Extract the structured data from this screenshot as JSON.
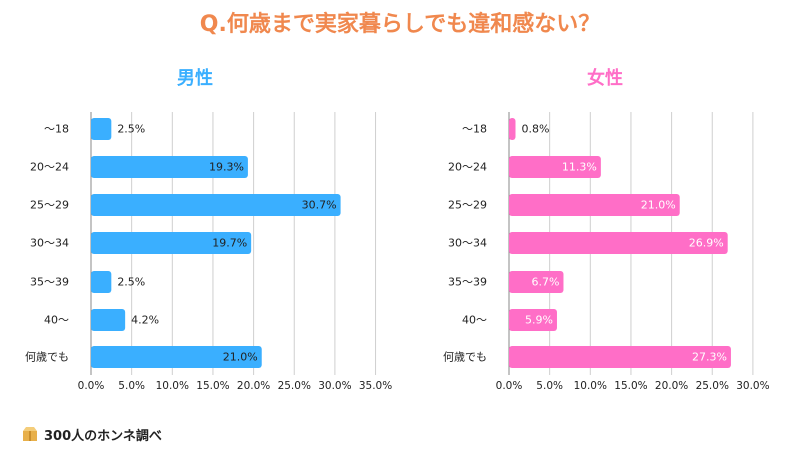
{
  "title": "Q.何歳まで実家暮らしでも違和感ない？",
  "colors": {
    "title": "#f0884e",
    "male": "#3aafff",
    "female": "#ff6ec7",
    "grid": "#cfcfcf",
    "axis": "#888888",
    "text": "#222222"
  },
  "footer": {
    "text": "300人のホンネ調べ",
    "logo_icon": "cardboard-box-icon"
  },
  "chart_data": [
    {
      "type": "bar",
      "orientation": "horizontal",
      "title": "男性",
      "color": "#3aafff",
      "categories": [
        "〜18",
        "20〜24",
        "25〜29",
        "30〜34",
        "35〜39",
        "40〜",
        "何歳でも"
      ],
      "values": [
        2.5,
        19.3,
        30.7,
        19.7,
        2.5,
        4.2,
        21.0
      ],
      "value_labels": [
        "2.5%",
        "19.3%",
        "30.7%",
        "19.7%",
        "2.5%",
        "4.2%",
        "21.0%"
      ],
      "xlim": [
        0,
        35
      ],
      "xticks": [
        "0.0%",
        "5.0%",
        "10.0%",
        "15.0%",
        "20.0%",
        "25.0%",
        "30.0%",
        "35.0%"
      ],
      "grid": true
    },
    {
      "type": "bar",
      "orientation": "horizontal",
      "title": "女性",
      "color": "#ff6ec7",
      "categories": [
        "〜18",
        "20〜24",
        "25〜29",
        "30〜34",
        "35〜39",
        "40〜",
        "何歳でも"
      ],
      "values": [
        0.8,
        11.3,
        21.0,
        26.9,
        6.7,
        5.9,
        27.3
      ],
      "value_labels": [
        "0.8%",
        "11.3%",
        "21.0%",
        "26.9%",
        "6.7%",
        "5.9%",
        "27.3%"
      ],
      "xlim": [
        0,
        30
      ],
      "xticks": [
        "0.0%",
        "5.0%",
        "10.0%",
        "15.0%",
        "20.0%",
        "25.0%",
        "30.0%"
      ],
      "grid": true
    }
  ]
}
